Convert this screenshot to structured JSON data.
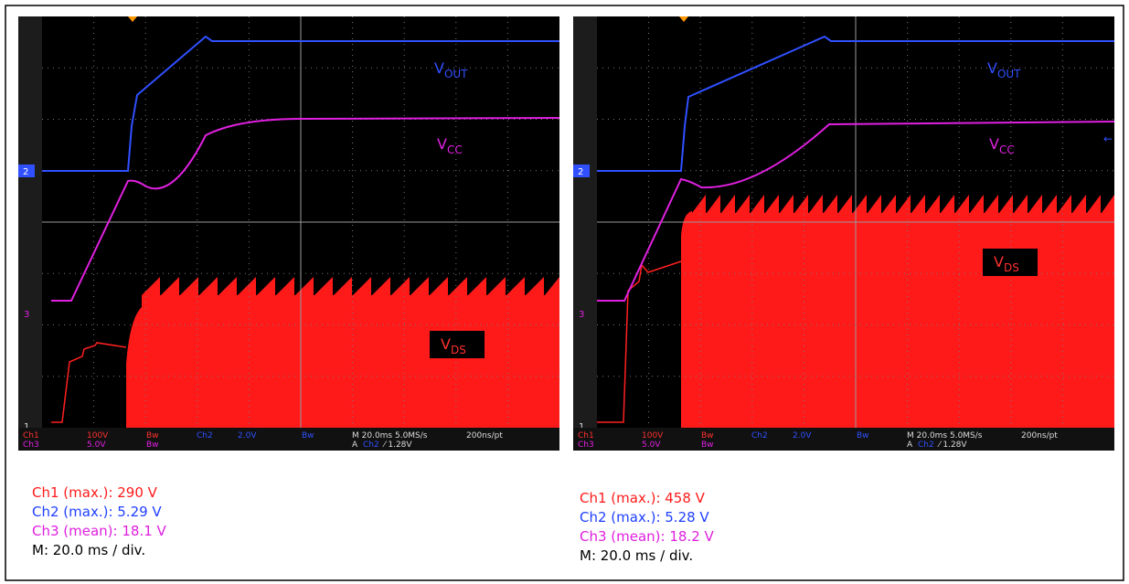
{
  "panels": [
    {
      "labels": {
        "vout": [
          "V",
          "OUT"
        ],
        "vcc": [
          "V",
          "CC"
        ],
        "vds": [
          "V",
          "DS"
        ]
      },
      "markers": [
        "2",
        "3",
        "1"
      ],
      "status": {
        "row1": [
          "Ch1",
          "100V",
          "Bw",
          "Ch2",
          "2.0V",
          "Bw",
          "M 20.0ms 5.0MS/s",
          "200ns/pt"
        ],
        "row2": [
          "Ch3",
          "5.0V",
          "Bw",
          "A",
          "Ch2",
          "⁄ 1.28V"
        ]
      },
      "measurements": [
        "Ch1 (max.): 290 V",
        "Ch2 (max.): 5.29 V",
        "Ch3 (mean): 18.1 V",
        "M: 20.0 ms / div."
      ]
    },
    {
      "labels": {
        "vout": [
          "V",
          "OUT"
        ],
        "vcc": [
          "V",
          "CC"
        ],
        "vds": [
          "V",
          "DS"
        ]
      },
      "markers": [
        "2",
        "3",
        "1"
      ],
      "status": {
        "row1": [
          "Ch1",
          "100V",
          "Bw",
          "Ch2",
          "2.0V",
          "Bw",
          "M 20.0ms 5.0MS/s",
          "200ns/pt"
        ],
        "row2": [
          "Ch3",
          "5.0V",
          "Bw",
          "A",
          "Ch2",
          "⁄ 1.28V"
        ]
      },
      "measurements": [
        "Ch1 (max.): 458 V",
        "Ch2 (max.): 5.28 V",
        "Ch3 (mean): 18.2 V",
        "M: 20.0 ms / div."
      ]
    }
  ]
}
